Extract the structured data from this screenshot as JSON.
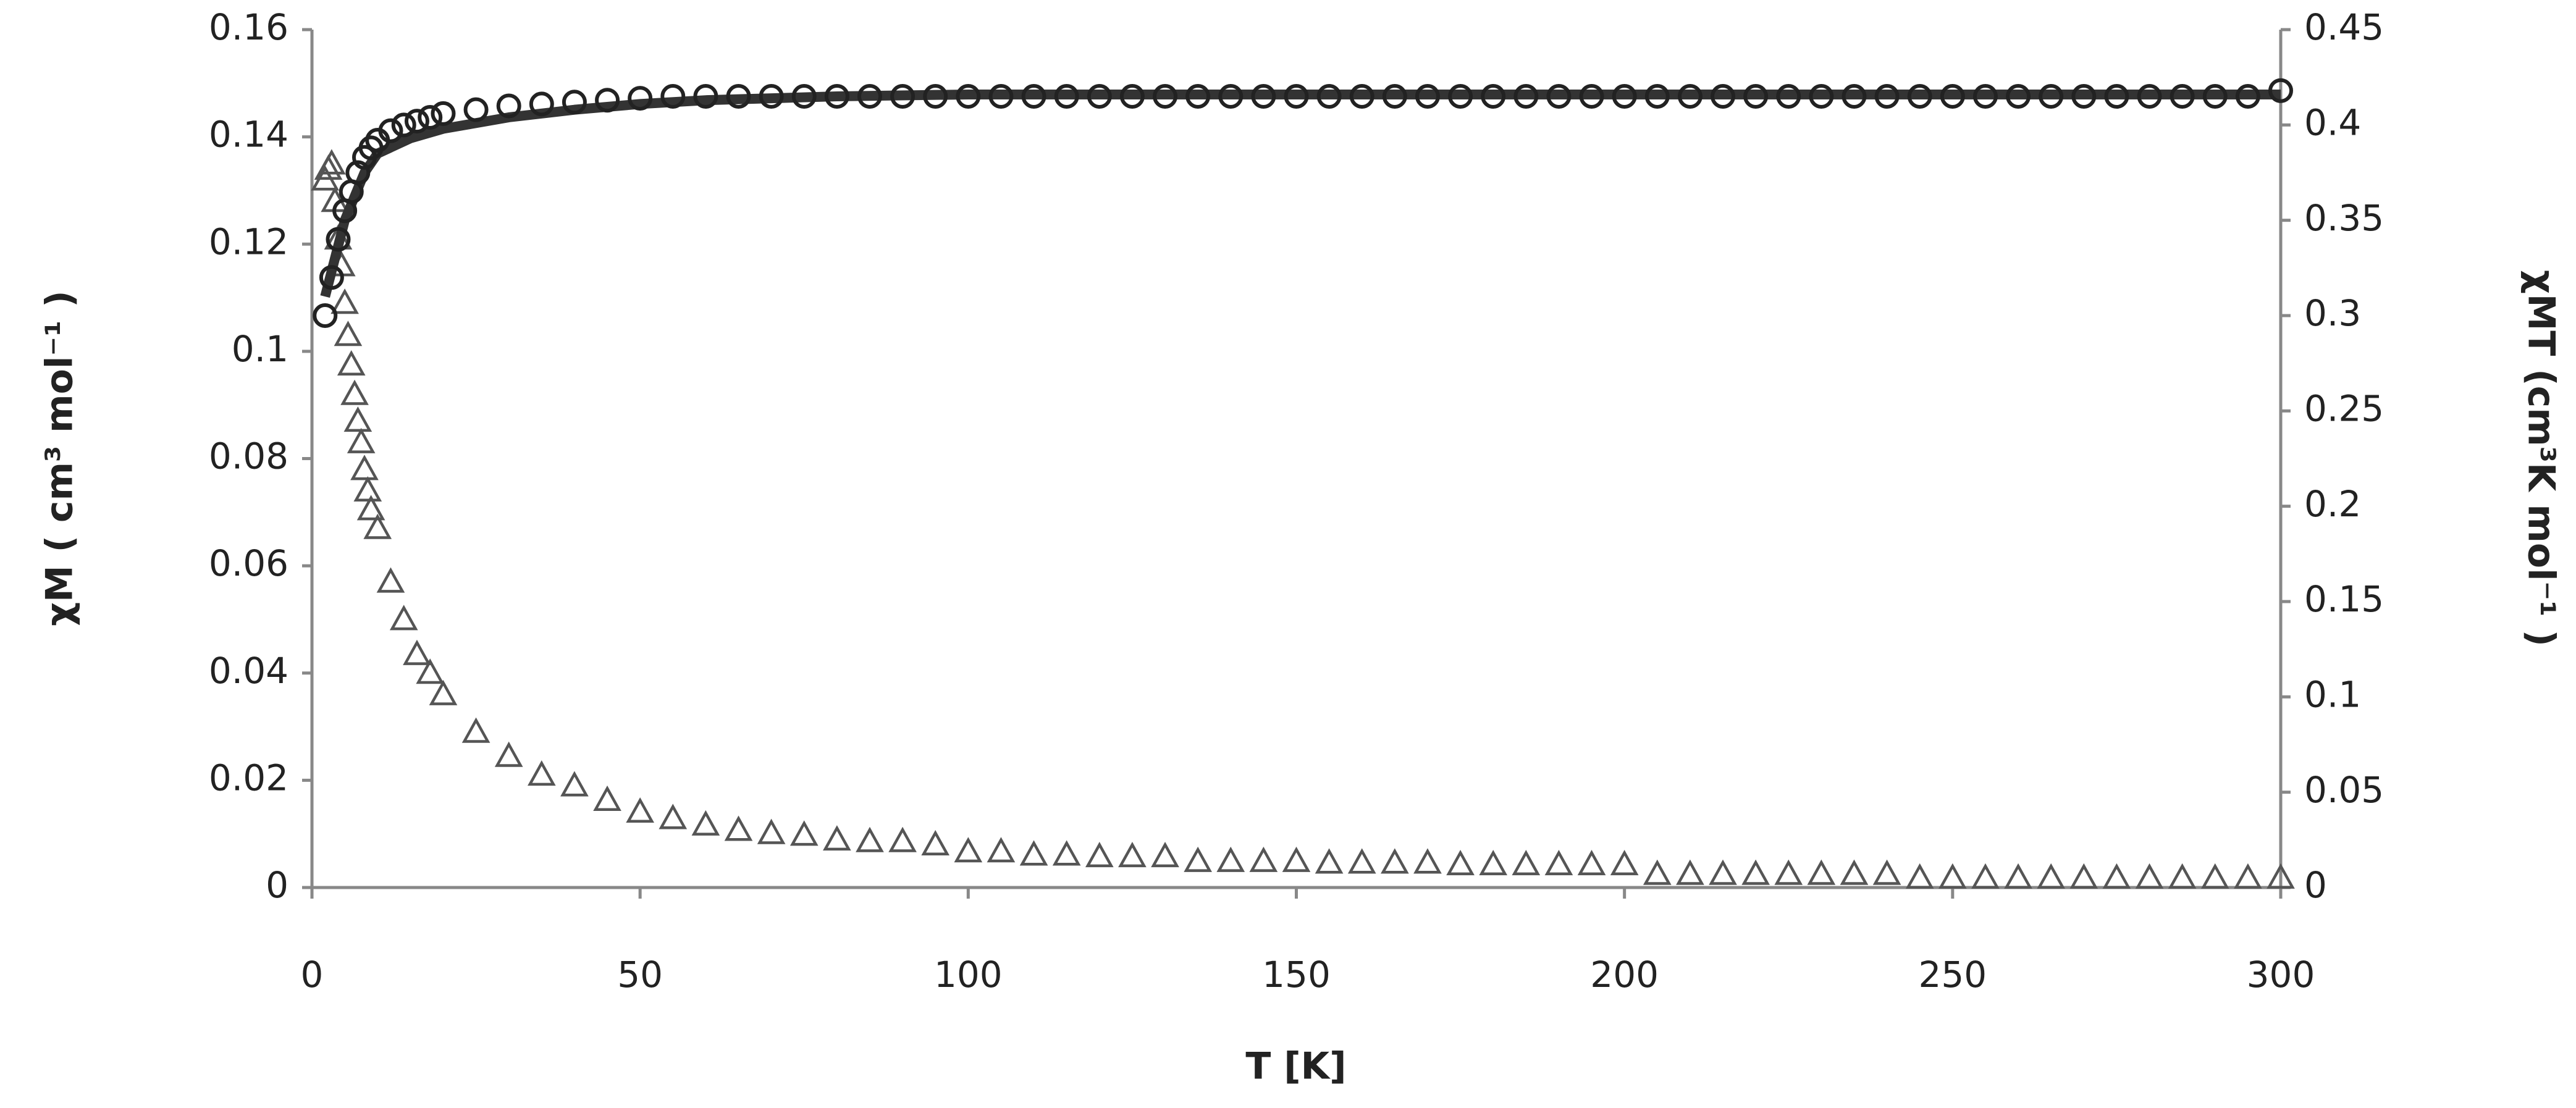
{
  "chart_data": {
    "type": "scatter",
    "xlabel": "T [K]",
    "ylabel": "χM ( cm³ mol⁻¹ )",
    "y2label": "χMT (cm³K mol⁻¹ )",
    "xlim": [
      0,
      300
    ],
    "xticks": [
      0,
      50,
      100,
      150,
      200,
      250,
      300
    ],
    "ylim": [
      0,
      0.16
    ],
    "yticks": [
      0,
      0.02,
      0.04,
      0.06,
      0.08,
      0.1,
      0.12,
      0.14,
      0.16
    ],
    "y2lim": [
      0,
      0.45
    ],
    "y2ticks": [
      0,
      0.05,
      0.1,
      0.15,
      0.2,
      0.25,
      0.3,
      0.35,
      0.4,
      0.45
    ],
    "series": [
      {
        "marker": "triangle",
        "color": "#555555",
        "x": [
          2,
          2.5,
          3,
          3.5,
          4,
          4.5,
          5,
          5.5,
          6,
          6.5,
          7,
          7.5,
          8,
          8.5,
          9,
          10,
          12,
          14,
          16,
          18,
          20,
          25,
          30,
          35,
          40,
          45,
          50,
          55,
          60,
          65,
          70,
          75,
          80,
          85,
          90,
          95,
          100,
          105,
          110,
          115,
          120,
          125,
          130,
          135,
          140,
          145,
          150,
          155,
          160,
          165,
          170,
          175,
          180,
          185,
          190,
          195,
          200,
          205,
          210,
          215,
          220,
          225,
          230,
          235,
          240,
          245,
          250,
          255,
          260,
          265,
          270,
          275,
          280,
          285,
          290,
          295,
          300
        ],
        "values": [
          0.132,
          0.134,
          0.135,
          0.128,
          0.121,
          0.116,
          0.109,
          0.103,
          0.0975,
          0.092,
          0.087,
          0.083,
          0.078,
          0.074,
          0.0705,
          0.067,
          0.057,
          0.05,
          0.0435,
          0.04,
          0.036,
          0.029,
          0.0245,
          0.021,
          0.019,
          0.0163,
          0.0141,
          0.0129,
          0.0117,
          0.0107,
          0.0101,
          0.0098,
          0.0089,
          0.0086,
          0.0086,
          0.008,
          0.0067,
          0.0067,
          0.0061,
          0.0061,
          0.0058,
          0.0058,
          0.0058,
          0.0049,
          0.0049,
          0.0049,
          0.0049,
          0.0046,
          0.0046,
          0.0046,
          0.0046,
          0.0043,
          0.0043,
          0.0043,
          0.0043,
          0.0043,
          0.0043,
          0.0025,
          0.0025,
          0.0025,
          0.0025,
          0.0025,
          0.0025,
          0.0025,
          0.0025,
          0.0018,
          0.0018,
          0.0018,
          0.0018,
          0.0018,
          0.0018,
          0.0018,
          0.0018,
          0.0018,
          0.0018,
          0.0018,
          0.0018
        ]
      },
      {
        "marker": "line",
        "axis": "y2",
        "color": "#333333",
        "x": [
          2,
          5,
          8,
          10,
          15,
          20,
          30,
          40,
          50,
          60,
          80,
          100,
          300
        ],
        "values": [
          0.31,
          0.35,
          0.375,
          0.385,
          0.393,
          0.398,
          0.404,
          0.408,
          0.411,
          0.413,
          0.415,
          0.416,
          0.416
        ]
      },
      {
        "marker": "circle",
        "axis": "y2",
        "color": "#222222",
        "x": [
          2,
          3,
          4,
          5,
          6,
          7,
          8,
          9,
          10,
          12,
          14,
          16,
          18,
          20,
          25,
          30,
          35,
          40,
          45,
          50,
          55,
          60,
          65,
          70,
          75,
          80,
          85,
          90,
          95,
          100,
          105,
          110,
          115,
          120,
          125,
          130,
          135,
          140,
          145,
          150,
          155,
          160,
          165,
          170,
          175,
          180,
          185,
          190,
          195,
          200,
          205,
          210,
          215,
          220,
          225,
          230,
          235,
          240,
          245,
          250,
          255,
          260,
          265,
          270,
          275,
          280,
          285,
          290,
          295,
          300
        ],
        "values": [
          0.3,
          0.32,
          0.34,
          0.355,
          0.365,
          0.375,
          0.383,
          0.388,
          0.392,
          0.397,
          0.4,
          0.402,
          0.404,
          0.406,
          0.408,
          0.41,
          0.411,
          0.412,
          0.413,
          0.414,
          0.415,
          0.415,
          0.415,
          0.415,
          0.415,
          0.415,
          0.415,
          0.415,
          0.415,
          0.415,
          0.415,
          0.415,
          0.415,
          0.415,
          0.415,
          0.415,
          0.415,
          0.415,
          0.415,
          0.415,
          0.415,
          0.415,
          0.415,
          0.415,
          0.415,
          0.415,
          0.415,
          0.415,
          0.415,
          0.415,
          0.415,
          0.415,
          0.415,
          0.415,
          0.415,
          0.415,
          0.415,
          0.415,
          0.415,
          0.415,
          0.415,
          0.415,
          0.415,
          0.415,
          0.415,
          0.415,
          0.415,
          0.415,
          0.415,
          0.418
        ]
      }
    ]
  }
}
